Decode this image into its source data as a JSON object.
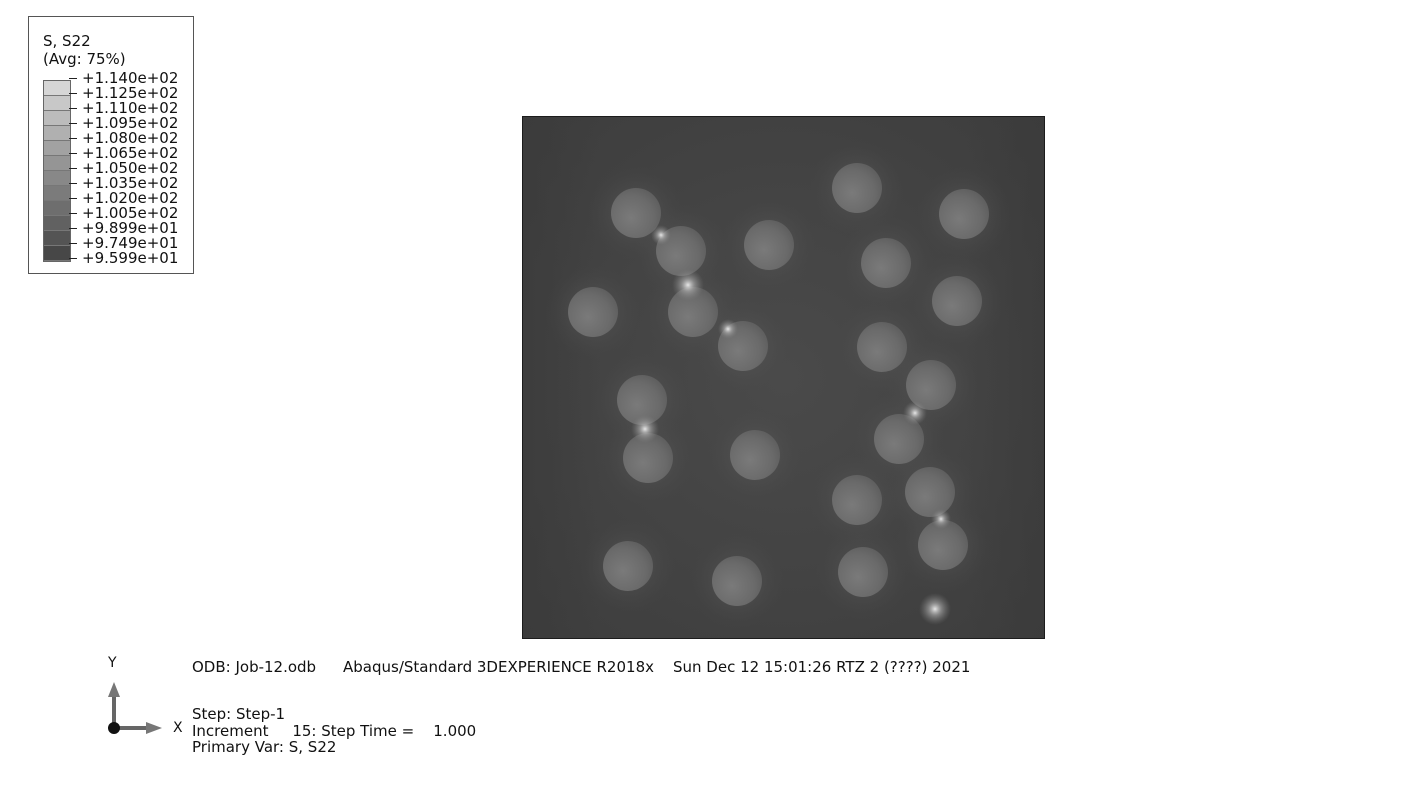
{
  "legend": {
    "title": "S, S22",
    "subtitle": "(Avg: 75%)",
    "values": [
      "+1.140e+02",
      "+1.125e+02",
      "+1.110e+02",
      "+1.095e+02",
      "+1.080e+02",
      "+1.065e+02",
      "+1.050e+02",
      "+1.035e+02",
      "+1.020e+02",
      "+1.005e+02",
      "+9.899e+01",
      "+9.749e+01",
      "+9.599e+01"
    ],
    "swatch_colors": [
      "#d6d6d6",
      "#c8c8c8",
      "#bcbcbc",
      "#b0b0b0",
      "#a2a2a2",
      "#959595",
      "#888888",
      "#7b7b7b",
      "#6e6e6e",
      "#616161",
      "#545454",
      "#474747",
      "#3a3a3a"
    ]
  },
  "triad": {
    "y_label": "Y",
    "x_label": "X"
  },
  "info": {
    "odb": "ODB: Job-12.odb",
    "solver": "Abaqus/Standard 3DEXPERIENCE R2018x",
    "date": "Sun Dec 12 15:01:26 RTZ 2 (????) 2021",
    "step": "Step: Step-1",
    "increment": "Increment     15: Step Time =    1.000",
    "primary_var": "Primary Var: S, S22"
  },
  "colors": {
    "matrix": "#434343",
    "inclusion": "#6e6e6e",
    "highlight": "#dcdcdc"
  }
}
